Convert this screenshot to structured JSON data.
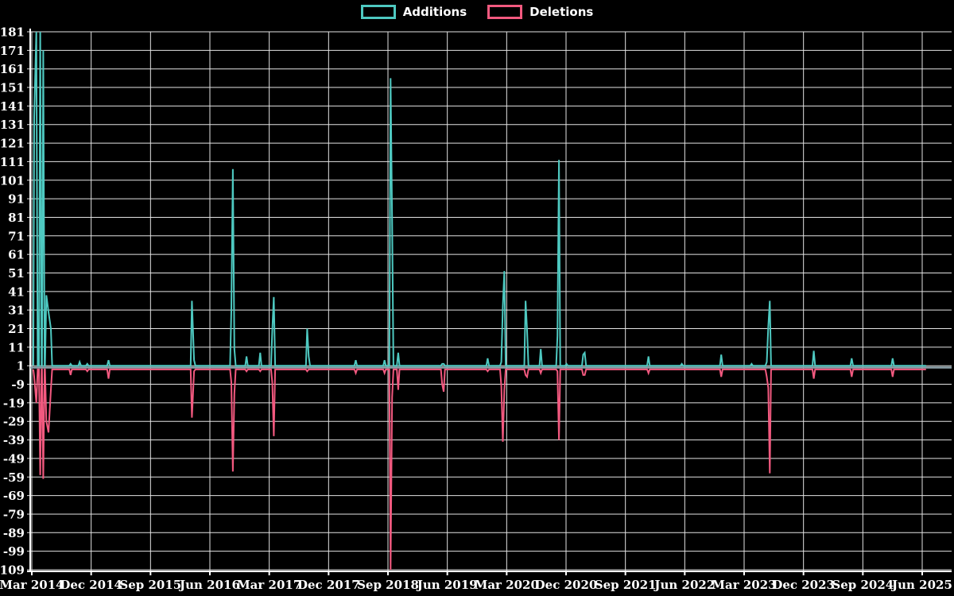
{
  "legend": {
    "additions_label": "Additions",
    "deletions_label": "Deletions"
  },
  "colors": {
    "background": "#000000",
    "grid": "#e3e3e3",
    "axis": "#ffffff",
    "tick_text": "#ffffff",
    "additions": "#4ec9c1",
    "deletions": "#f2597f",
    "baseline": "#8ea3ab"
  },
  "chart_data": {
    "type": "line",
    "title": "",
    "xlabel": "",
    "ylabel": "",
    "grid": true,
    "legend_position": "top-center",
    "ylim": [
      -109,
      181
    ],
    "x_range": [
      "2014-03-01",
      "2025-06-30"
    ],
    "y_ticks": [
      181,
      171,
      161,
      151,
      141,
      131,
      121,
      111,
      101,
      91,
      81,
      71,
      61,
      51,
      41,
      31,
      21,
      11,
      1,
      -9,
      -19,
      -29,
      -39,
      -49,
      -59,
      -69,
      -79,
      -89,
      -99,
      -109
    ],
    "x_ticks": [
      "Mar 2014",
      "Dec 2014",
      "Sep 2015",
      "Jun 2016",
      "Mar 2017",
      "Dec 2017",
      "Sep 2018",
      "Jun 2019",
      "Mar 2020",
      "Dec 2020",
      "Sep 2021",
      "Jun 2022",
      "Mar 2023",
      "Dec 2023",
      "Sep 2024",
      "Jun 2025"
    ],
    "series_labels": {
      "additions": "Additions",
      "deletions": "Deletions"
    },
    "rest_values": {
      "additions": 1,
      "deletions": -1
    },
    "points": [
      {
        "date": "2014-03-08",
        "additions": 1,
        "deletions": -1
      },
      {
        "date": "2014-03-12",
        "additions": 135,
        "deletions": -5
      },
      {
        "date": "2014-03-22",
        "additions": 181,
        "deletions": -19
      },
      {
        "date": "2014-04-09",
        "additions": 181,
        "deletions": -58
      },
      {
        "date": "2014-04-23",
        "additions": 171,
        "deletions": -60
      },
      {
        "date": "2014-05-07",
        "additions": 39,
        "deletions": -29
      },
      {
        "date": "2014-05-17",
        "additions": 30,
        "deletions": -35
      },
      {
        "date": "2014-05-28",
        "additions": 21,
        "deletions": -12
      },
      {
        "date": "2014-08-27",
        "additions": 2,
        "deletions": -4
      },
      {
        "date": "2014-10-08",
        "additions": 3,
        "deletions": -1
      },
      {
        "date": "2014-11-12",
        "additions": 2,
        "deletions": -2
      },
      {
        "date": "2015-02-18",
        "additions": 4,
        "deletions": -6
      },
      {
        "date": "2016-03-09",
        "additions": 36,
        "deletions": -27
      },
      {
        "date": "2016-03-19",
        "additions": 4,
        "deletions": -2
      },
      {
        "date": "2016-09-07",
        "additions": 31,
        "deletions": -8
      },
      {
        "date": "2016-09-14",
        "additions": 107,
        "deletions": -56
      },
      {
        "date": "2016-09-21",
        "additions": 10,
        "deletions": -14
      },
      {
        "date": "2016-11-16",
        "additions": 6,
        "deletions": -2
      },
      {
        "date": "2017-01-18",
        "additions": 8,
        "deletions": -2
      },
      {
        "date": "2017-03-15",
        "additions": 20,
        "deletions": -8
      },
      {
        "date": "2017-03-22",
        "additions": 38,
        "deletions": -37
      },
      {
        "date": "2017-08-23",
        "additions": 21,
        "deletions": -2
      },
      {
        "date": "2017-08-30",
        "additions": 6,
        "deletions": -1
      },
      {
        "date": "2018-04-04",
        "additions": 4,
        "deletions": -3
      },
      {
        "date": "2018-08-15",
        "additions": 4,
        "deletions": -3
      },
      {
        "date": "2018-09-12",
        "additions": 156,
        "deletions": -109
      },
      {
        "date": "2018-09-19",
        "additions": 80,
        "deletions": -16
      },
      {
        "date": "2018-10-17",
        "additions": 8,
        "deletions": -12
      },
      {
        "date": "2019-05-08",
        "additions": 2,
        "deletions": -9
      },
      {
        "date": "2019-05-15",
        "additions": 2,
        "deletions": -13
      },
      {
        "date": "2019-12-04",
        "additions": 5,
        "deletions": -2
      },
      {
        "date": "2020-02-05",
        "additions": 3,
        "deletions": -10
      },
      {
        "date": "2020-02-12",
        "additions": 33,
        "deletions": -40
      },
      {
        "date": "2020-02-19",
        "additions": 52,
        "deletions": -12
      },
      {
        "date": "2020-05-27",
        "additions": 36,
        "deletions": -4
      },
      {
        "date": "2020-06-03",
        "additions": 20,
        "deletions": -5
      },
      {
        "date": "2020-08-05",
        "additions": 10,
        "deletions": -3
      },
      {
        "date": "2020-10-21",
        "additions": 17,
        "deletions": -2
      },
      {
        "date": "2020-10-28",
        "additions": 112,
        "deletions": -39
      },
      {
        "date": "2020-12-02",
        "additions": 2,
        "deletions": -1
      },
      {
        "date": "2021-02-17",
        "additions": 7,
        "deletions": -4
      },
      {
        "date": "2021-02-24",
        "additions": 8,
        "deletions": -4
      },
      {
        "date": "2021-12-15",
        "additions": 6,
        "deletions": -3
      },
      {
        "date": "2022-05-18",
        "additions": 2,
        "deletions": -1
      },
      {
        "date": "2022-11-16",
        "additions": 7,
        "deletions": -5
      },
      {
        "date": "2023-04-05",
        "additions": 2,
        "deletions": -1
      },
      {
        "date": "2023-06-14",
        "additions": 3,
        "deletions": -5
      },
      {
        "date": "2023-06-21",
        "additions": 22,
        "deletions": -11
      },
      {
        "date": "2023-06-28",
        "additions": 36,
        "deletions": -57
      },
      {
        "date": "2024-01-17",
        "additions": 9,
        "deletions": -6
      },
      {
        "date": "2024-07-10",
        "additions": 5,
        "deletions": -5
      },
      {
        "date": "2025-01-15",
        "additions": 5,
        "deletions": -5
      },
      {
        "date": "2025-06-18",
        "additions": 1,
        "deletions": -1
      }
    ]
  }
}
